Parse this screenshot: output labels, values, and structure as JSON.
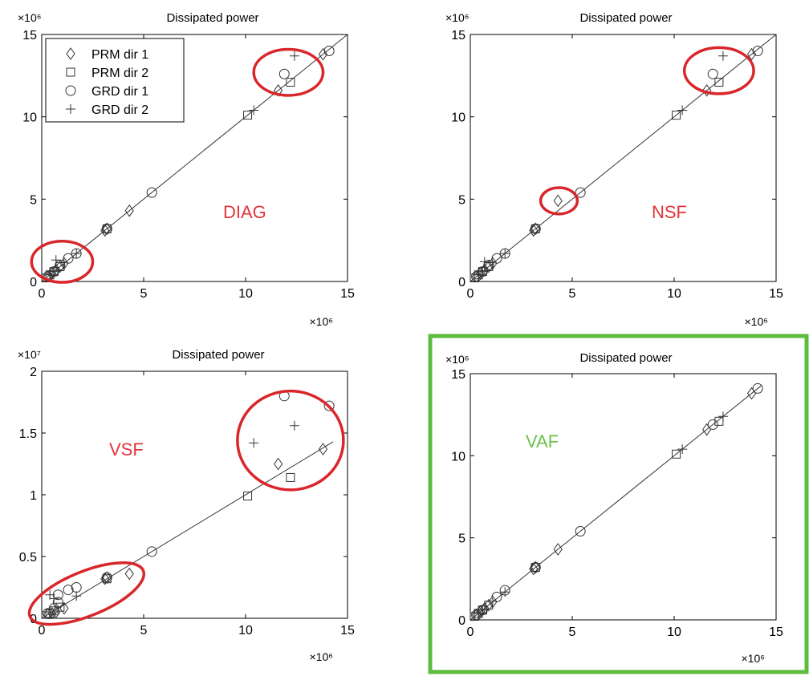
{
  "colors": {
    "axis": "#000000",
    "marker": "#333333",
    "fit_line": "#333333",
    "highlight_red": "#d9262b",
    "label_red": "#e3343a",
    "highlight_green": "#5cbc3f",
    "label_green": "#6cc24a"
  },
  "legend": [
    {
      "name": "PRM dir 1",
      "marker": "diamond"
    },
    {
      "name": "PRM dir 2",
      "marker": "square"
    },
    {
      "name": "GRD dir 1",
      "marker": "circle"
    },
    {
      "name": "GRD dir 2",
      "marker": "plus"
    }
  ],
  "chart_data": [
    {
      "id": "diag",
      "type": "scatter",
      "title": "Dissipated power",
      "panel_label": "DIAG",
      "label_color": "red",
      "frame_highlight": false,
      "show_legend": true,
      "x_multiplier": "×10⁶",
      "y_multiplier": "×10⁶",
      "xlim": [
        0,
        15
      ],
      "ylim": [
        0,
        15
      ],
      "xticks": [
        0,
        5,
        10,
        15
      ],
      "yticks": [
        0,
        5,
        10,
        15
      ],
      "xtick_labels": [
        "0",
        "5",
        "10",
        "15"
      ],
      "ytick_labels": [
        "0",
        "5",
        "10",
        "15"
      ],
      "fit_line": [
        [
          0,
          0
        ],
        [
          15,
          15
        ]
      ],
      "highlight_ellipses": [
        {
          "cx": 1.0,
          "cy": 1.2,
          "rx": 1.5,
          "ry": 1.25
        },
        {
          "cx": 12.1,
          "cy": 12.7,
          "rx": 1.7,
          "ry": 1.4
        }
      ],
      "series": [
        {
          "name": "PRM dir 1",
          "marker": "diamond",
          "points": [
            [
              0.3,
              0.3
            ],
            [
              0.5,
              0.5
            ],
            [
              0.7,
              0.7
            ],
            [
              0.9,
              0.9
            ],
            [
              1.1,
              1.1
            ],
            [
              3.1,
              3.1
            ],
            [
              3.2,
              3.2
            ],
            [
              4.3,
              4.3
            ],
            [
              11.6,
              11.6
            ],
            [
              13.8,
              13.8
            ]
          ]
        },
        {
          "name": "PRM dir 2",
          "marker": "square",
          "points": [
            [
              0.2,
              0.2
            ],
            [
              0.4,
              0.4
            ],
            [
              0.6,
              0.6
            ],
            [
              0.9,
              0.9
            ],
            [
              3.2,
              3.2
            ],
            [
              10.1,
              10.1
            ],
            [
              12.2,
              12.1
            ]
          ]
        },
        {
          "name": "GRD dir 1",
          "marker": "circle",
          "points": [
            [
              0.3,
              0.3
            ],
            [
              0.6,
              0.6
            ],
            [
              0.9,
              1.0
            ],
            [
              1.3,
              1.4
            ],
            [
              1.7,
              1.7
            ],
            [
              3.2,
              3.2
            ],
            [
              5.4,
              5.4
            ],
            [
              11.9,
              12.6
            ],
            [
              14.1,
              14.0
            ]
          ]
        },
        {
          "name": "GRD dir 2",
          "marker": "plus",
          "points": [
            [
              0.4,
              0.4
            ],
            [
              0.6,
              0.6
            ],
            [
              0.7,
              1.3
            ],
            [
              1.7,
              1.7
            ],
            [
              10.4,
              10.4
            ],
            [
              12.4,
              13.7
            ]
          ]
        }
      ]
    },
    {
      "id": "nsf",
      "type": "scatter",
      "title": "Dissipated power",
      "panel_label": "NSF",
      "label_color": "red",
      "frame_highlight": false,
      "show_legend": false,
      "x_multiplier": "×10⁶",
      "y_multiplier": "×10⁶",
      "xlim": [
        0,
        15
      ],
      "ylim": [
        0,
        15
      ],
      "xticks": [
        0,
        5,
        10,
        15
      ],
      "yticks": [
        0,
        5,
        10,
        15
      ],
      "xtick_labels": [
        "0",
        "5",
        "10",
        "15"
      ],
      "ytick_labels": [
        "0",
        "5",
        "10",
        "15"
      ],
      "fit_line": [
        [
          0,
          0
        ],
        [
          15,
          15
        ]
      ],
      "highlight_ellipses": [
        {
          "cx": 4.35,
          "cy": 4.9,
          "rx": 0.9,
          "ry": 0.8
        },
        {
          "cx": 12.2,
          "cy": 12.8,
          "rx": 1.7,
          "ry": 1.4
        }
      ],
      "series": [
        {
          "name": "PRM dir 1",
          "marker": "diamond",
          "points": [
            [
              0.3,
              0.3
            ],
            [
              0.5,
              0.5
            ],
            [
              0.7,
              0.7
            ],
            [
              0.9,
              0.9
            ],
            [
              1.1,
              1.1
            ],
            [
              3.1,
              3.1
            ],
            [
              3.2,
              3.2
            ],
            [
              4.3,
              4.9
            ],
            [
              11.6,
              11.6
            ],
            [
              13.8,
              13.8
            ]
          ]
        },
        {
          "name": "PRM dir 2",
          "marker": "square",
          "points": [
            [
              0.2,
              0.2
            ],
            [
              0.4,
              0.4
            ],
            [
              0.6,
              0.6
            ],
            [
              0.9,
              0.9
            ],
            [
              3.2,
              3.2
            ],
            [
              10.1,
              10.1
            ],
            [
              12.2,
              12.1
            ]
          ]
        },
        {
          "name": "GRD dir 1",
          "marker": "circle",
          "points": [
            [
              0.3,
              0.3
            ],
            [
              0.6,
              0.6
            ],
            [
              0.9,
              1.0
            ],
            [
              1.3,
              1.4
            ],
            [
              1.7,
              1.7
            ],
            [
              3.2,
              3.2
            ],
            [
              5.4,
              5.4
            ],
            [
              11.9,
              12.6
            ],
            [
              14.1,
              14.0
            ]
          ]
        },
        {
          "name": "GRD dir 2",
          "marker": "plus",
          "points": [
            [
              0.4,
              0.4
            ],
            [
              0.6,
              0.6
            ],
            [
              0.7,
              1.2
            ],
            [
              1.7,
              1.7
            ],
            [
              10.4,
              10.4
            ],
            [
              12.4,
              13.7
            ]
          ]
        }
      ]
    },
    {
      "id": "vsf",
      "type": "scatter",
      "title": "Dissipated power",
      "panel_label": "VSF",
      "label_color": "red",
      "frame_highlight": false,
      "show_legend": false,
      "x_multiplier": "×10⁶",
      "y_multiplier": "×10⁷",
      "xlim": [
        0,
        15
      ],
      "ylim": [
        0,
        2
      ],
      "xticks": [
        0,
        5,
        10,
        15
      ],
      "yticks": [
        0,
        0.5,
        1,
        1.5,
        2
      ],
      "xtick_labels": [
        "0",
        "5",
        "10",
        "15"
      ],
      "ytick_labels": [
        "0",
        "0.5",
        "1",
        "1.5",
        "2"
      ],
      "fit_line": [
        [
          0,
          0
        ],
        [
          14.3,
          1.43
        ]
      ],
      "highlight_ellipses": [
        {
          "cx": 2.2,
          "cy": 0.2,
          "rx": 3.0,
          "ry": 0.18,
          "rotate": -22
        },
        {
          "cx": 12.2,
          "cy": 1.44,
          "rx": 2.6,
          "ry": 0.4
        }
      ],
      "series": [
        {
          "name": "PRM dir 1",
          "marker": "diamond",
          "points": [
            [
              0.3,
              0.03
            ],
            [
              0.5,
              0.04
            ],
            [
              0.7,
              0.05
            ],
            [
              1.1,
              0.08
            ],
            [
              3.1,
              0.32
            ],
            [
              3.2,
              0.33
            ],
            [
              4.3,
              0.36
            ],
            [
              11.6,
              1.25
            ],
            [
              13.8,
              1.37
            ]
          ]
        },
        {
          "name": "PRM dir 2",
          "marker": "square",
          "points": [
            [
              0.2,
              0.02
            ],
            [
              0.4,
              0.04
            ],
            [
              0.6,
              0.06
            ],
            [
              0.9,
              0.09
            ],
            [
              3.2,
              0.32
            ],
            [
              10.1,
              0.99
            ],
            [
              12.2,
              1.14
            ]
          ]
        },
        {
          "name": "GRD dir 1",
          "marker": "circle",
          "points": [
            [
              0.3,
              0.04
            ],
            [
              0.6,
              0.08
            ],
            [
              0.8,
              0.13
            ],
            [
              0.8,
              0.19
            ],
            [
              1.3,
              0.23
            ],
            [
              1.7,
              0.25
            ],
            [
              3.2,
              0.33
            ],
            [
              5.4,
              0.54
            ],
            [
              11.9,
              1.8
            ],
            [
              14.1,
              1.72
            ]
          ]
        },
        {
          "name": "GRD dir 2",
          "marker": "plus",
          "points": [
            [
              0.4,
              0.19
            ],
            [
              0.6,
              0.16
            ],
            [
              1.7,
              0.18
            ],
            [
              10.4,
              1.42
            ],
            [
              12.4,
              1.56
            ]
          ]
        }
      ]
    },
    {
      "id": "vaf",
      "type": "scatter",
      "title": "Dissipated power",
      "panel_label": "VAF",
      "label_color": "green",
      "frame_highlight": true,
      "show_legend": false,
      "x_multiplier": "×10⁶",
      "y_multiplier": "×10⁶",
      "xlim": [
        0,
        15
      ],
      "ylim": [
        0,
        15
      ],
      "xticks": [
        0,
        5,
        10,
        15
      ],
      "yticks": [
        0,
        5,
        10,
        15
      ],
      "xtick_labels": [
        "0",
        "5",
        "10",
        "15"
      ],
      "ytick_labels": [
        "0",
        "5",
        "10",
        "15"
      ],
      "fit_line": [
        [
          0,
          0
        ],
        [
          14.3,
          14.3
        ]
      ],
      "highlight_ellipses": [],
      "series": [
        {
          "name": "PRM dir 1",
          "marker": "diamond",
          "points": [
            [
              0.3,
              0.3
            ],
            [
              0.5,
              0.5
            ],
            [
              0.7,
              0.7
            ],
            [
              0.9,
              0.9
            ],
            [
              1.1,
              1.1
            ],
            [
              3.1,
              3.1
            ],
            [
              3.2,
              3.2
            ],
            [
              4.3,
              4.3
            ],
            [
              11.6,
              11.6
            ],
            [
              13.8,
              13.8
            ]
          ]
        },
        {
          "name": "PRM dir 2",
          "marker": "square",
          "points": [
            [
              0.2,
              0.2
            ],
            [
              0.4,
              0.4
            ],
            [
              0.6,
              0.6
            ],
            [
              0.9,
              0.9
            ],
            [
              3.2,
              3.2
            ],
            [
              10.1,
              10.1
            ],
            [
              12.2,
              12.1
            ]
          ]
        },
        {
          "name": "GRD dir 1",
          "marker": "circle",
          "points": [
            [
              0.3,
              0.3
            ],
            [
              0.6,
              0.6
            ],
            [
              1.3,
              1.4
            ],
            [
              1.7,
              1.8
            ],
            [
              3.2,
              3.2
            ],
            [
              5.4,
              5.4
            ],
            [
              11.9,
              11.9
            ],
            [
              14.1,
              14.1
            ]
          ]
        },
        {
          "name": "GRD dir 2",
          "marker": "plus",
          "points": [
            [
              0.4,
              0.4
            ],
            [
              0.6,
              0.6
            ],
            [
              1.7,
              1.7
            ],
            [
              10.4,
              10.4
            ],
            [
              12.4,
              12.4
            ]
          ]
        }
      ]
    }
  ]
}
